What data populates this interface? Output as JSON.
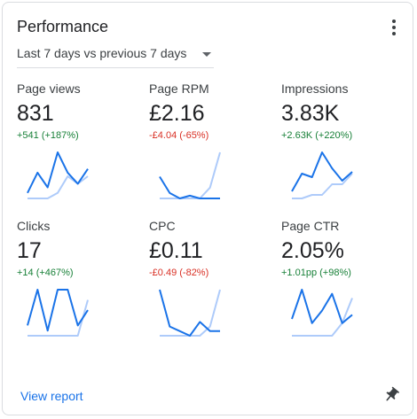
{
  "card": {
    "title": "Performance",
    "period": "Last 7 days vs previous 7 days",
    "view_report": "View report"
  },
  "metrics": [
    {
      "label": "Page views",
      "value": "831",
      "change": "+541 (+187%)",
      "trend": "up",
      "current": [
        3,
        14,
        6,
        25,
        14,
        8,
        16
      ],
      "previous": [
        0,
        0,
        0,
        3,
        12,
        8,
        12
      ]
    },
    {
      "label": "Page RPM",
      "value": "£2.16",
      "change": "-£4.04 (-65%)",
      "trend": "down",
      "current": [
        8,
        2,
        0,
        1,
        0,
        0,
        0
      ],
      "previous": [
        0,
        0,
        0,
        0,
        0,
        4,
        17
      ]
    },
    {
      "label": "Impressions",
      "value": "3.83K",
      "change": "+2.63K (+220%)",
      "trend": "up",
      "current": [
        4,
        14,
        12,
        26,
        17,
        10,
        15
      ],
      "previous": [
        0,
        0,
        2,
        2,
        8,
        8,
        14
      ]
    },
    {
      "label": "Clicks",
      "value": "17",
      "change": "+14 (+467%)",
      "trend": "up",
      "current": [
        2,
        9,
        1,
        9,
        9,
        2,
        5
      ],
      "previous": [
        0,
        0,
        0,
        0,
        0,
        0,
        7
      ]
    },
    {
      "label": "CPC",
      "value": "£0.11",
      "change": "-£0.49 (-82%)",
      "trend": "down",
      "current": [
        10,
        2,
        1,
        0,
        3,
        1,
        1
      ],
      "previous": [
        0,
        0,
        0,
        0,
        0,
        2,
        10
      ]
    },
    {
      "label": "Page CTR",
      "value": "2.05%",
      "change": "+1.01pp (+98%)",
      "trend": "up",
      "current": [
        4,
        11,
        3,
        6,
        10,
        3,
        5
      ],
      "previous": [
        0,
        0,
        0,
        0,
        0,
        3,
        9
      ]
    }
  ],
  "colors": {
    "current_line": "#1a73e8",
    "previous_line": "#aecbfa",
    "positive": "#188038",
    "negative": "#d93025",
    "link": "#1a73e8"
  },
  "icons": {
    "menu": "more-vert-icon",
    "dropdown": "arrow-drop-down-icon",
    "pin": "pin-icon"
  }
}
